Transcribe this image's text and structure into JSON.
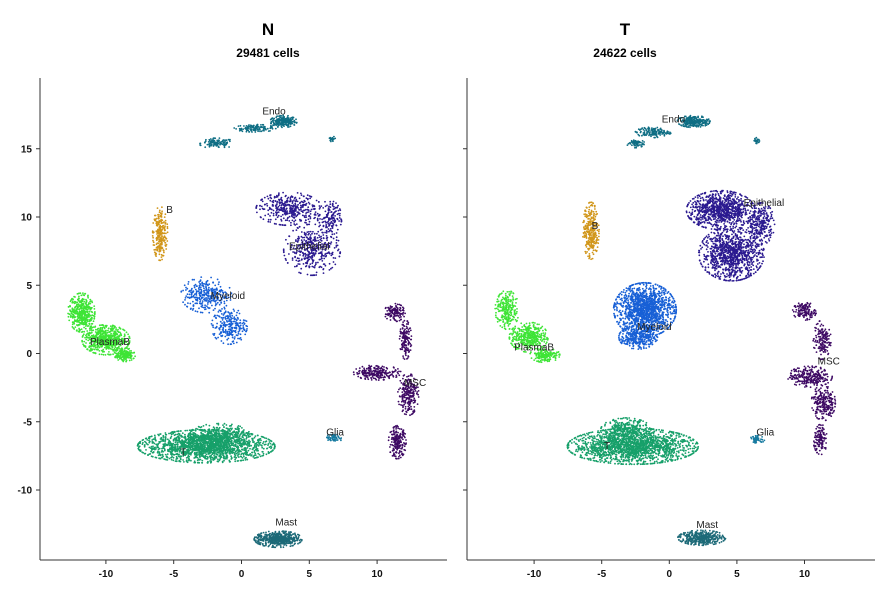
{
  "chart_data": [
    {
      "type": "scatter",
      "title": "N",
      "subtitle": "29481 cells",
      "xlim": [
        -14,
        15
      ],
      "ylim": [
        -15,
        20
      ],
      "xticks": [
        -10,
        -5,
        0,
        5,
        10
      ],
      "yticks": [
        -10,
        -5,
        0,
        5,
        10,
        15
      ],
      "clusters": [
        {
          "name": "Endo",
          "color": "#0f6e84",
          "label_x": 2.4,
          "label_y": 17.7,
          "blobs": [
            {
              "x": 3.1,
              "y": 17.0,
              "rx": 0.9,
              "ry": 0.4,
              "n": 220
            },
            {
              "x": 1.0,
              "y": 16.5,
              "rx": 1.4,
              "ry": 0.25,
              "n": 120
            },
            {
              "x": -1.8,
              "y": 15.4,
              "rx": 1.2,
              "ry": 0.35,
              "n": 110
            },
            {
              "x": 6.7,
              "y": 15.7,
              "rx": 0.2,
              "ry": 0.2,
              "n": 20
            }
          ]
        },
        {
          "name": "B",
          "color": "#d1961a",
          "label_x": -5.3,
          "label_y": 10.5,
          "blobs": [
            {
              "x": -6.0,
              "y": 8.8,
              "rx": 0.5,
              "ry": 1.8,
              "n": 260
            }
          ]
        },
        {
          "name": "Epithelial",
          "color": "#2b1a90",
          "label_x": 5.0,
          "label_y": 7.8,
          "blobs": [
            {
              "x": 3.5,
              "y": 10.6,
              "rx": 2.2,
              "ry": 1.1,
              "n": 380
            },
            {
              "x": 5.2,
              "y": 7.6,
              "rx": 1.9,
              "ry": 1.7,
              "n": 380
            },
            {
              "x": 6.5,
              "y": 9.9,
              "rx": 0.8,
              "ry": 1.2,
              "n": 140
            }
          ]
        },
        {
          "name": "Myeloid",
          "color": "#1860d6",
          "label_x": -1.0,
          "label_y": 4.2,
          "blobs": [
            {
              "x": -2.6,
              "y": 4.3,
              "rx": 1.7,
              "ry": 1.2,
              "n": 320
            },
            {
              "x": -0.9,
              "y": 2.0,
              "rx": 1.2,
              "ry": 1.2,
              "n": 240
            }
          ]
        },
        {
          "name": "PlasmaB",
          "color": "#3ee436",
          "label_x": -9.7,
          "label_y": 0.8,
          "blobs": [
            {
              "x": -11.8,
              "y": 3.0,
              "rx": 0.9,
              "ry": 1.3,
              "n": 420
            },
            {
              "x": -10.0,
              "y": 1.0,
              "rx": 1.6,
              "ry": 1.0,
              "n": 620
            },
            {
              "x": -8.6,
              "y": -0.1,
              "rx": 0.7,
              "ry": 0.45,
              "n": 180
            }
          ]
        },
        {
          "name": "MSC",
          "color": "#3e0a64",
          "label_x": 12.8,
          "label_y": -2.2,
          "blobs": [
            {
              "x": 11.3,
              "y": 3.0,
              "rx": 0.7,
              "ry": 0.6,
              "n": 120
            },
            {
              "x": 12.1,
              "y": 1.0,
              "rx": 0.4,
              "ry": 1.3,
              "n": 140
            },
            {
              "x": 10.0,
              "y": -1.4,
              "rx": 1.6,
              "ry": 0.5,
              "n": 220
            },
            {
              "x": 12.3,
              "y": -3.0,
              "rx": 0.7,
              "ry": 1.4,
              "n": 240
            },
            {
              "x": 11.5,
              "y": -6.5,
              "rx": 0.6,
              "ry": 1.1,
              "n": 200
            }
          ]
        },
        {
          "name": "T",
          "color": "#17a06a",
          "label_x": -4.3,
          "label_y": -7.3,
          "blobs": [
            {
              "x": -2.6,
              "y": -6.8,
              "rx": 4.6,
              "ry": 1.1,
              "n": 1800
            },
            {
              "x": -1.6,
              "y": -5.9,
              "rx": 2.0,
              "ry": 0.7,
              "n": 300
            }
          ]
        },
        {
          "name": "Glia",
          "color": "#167aa0",
          "label_x": 6.9,
          "label_y": -5.8,
          "blobs": [
            {
              "x": 6.8,
              "y": -6.2,
              "rx": 0.6,
              "ry": 0.25,
              "n": 60
            }
          ]
        },
        {
          "name": "Mast",
          "color": "#1d6a78",
          "label_x": 3.3,
          "label_y": -12.4,
          "blobs": [
            {
              "x": 2.7,
              "y": -13.6,
              "rx": 1.6,
              "ry": 0.55,
              "n": 520
            }
          ]
        }
      ]
    },
    {
      "type": "scatter",
      "title": "T",
      "subtitle": "24622 cells",
      "xlim": [
        -14,
        15
      ],
      "ylim": [
        -15,
        20
      ],
      "xticks": [
        -10,
        -5,
        0,
        5,
        10
      ],
      "yticks": [
        -10,
        -5,
        0,
        5,
        10,
        15
      ],
      "clusters": [
        {
          "name": "Endo",
          "color": "#0f6e84",
          "label_x": 0.3,
          "label_y": 17.1,
          "blobs": [
            {
              "x": 1.8,
              "y": 17.0,
              "rx": 1.1,
              "ry": 0.4,
              "n": 260
            },
            {
              "x": -1.2,
              "y": 16.2,
              "rx": 1.2,
              "ry": 0.35,
              "n": 140
            },
            {
              "x": -2.5,
              "y": 15.4,
              "rx": 0.6,
              "ry": 0.3,
              "n": 60
            },
            {
              "x": 6.5,
              "y": 15.6,
              "rx": 0.2,
              "ry": 0.2,
              "n": 20
            }
          ]
        },
        {
          "name": "B",
          "color": "#d1961a",
          "label_x": -5.5,
          "label_y": 9.3,
          "blobs": [
            {
              "x": -5.8,
              "y": 9.0,
              "rx": 0.55,
              "ry": 1.9,
              "n": 300
            }
          ]
        },
        {
          "name": "Epithelial",
          "color": "#2b1a90",
          "label_x": 7.0,
          "label_y": 11.0,
          "blobs": [
            {
              "x": 3.8,
              "y": 10.5,
              "rx": 2.3,
              "ry": 1.3,
              "n": 900
            },
            {
              "x": 4.6,
              "y": 7.3,
              "rx": 2.2,
              "ry": 1.8,
              "n": 1000
            },
            {
              "x": 6.8,
              "y": 9.5,
              "rx": 0.9,
              "ry": 1.4,
              "n": 260
            }
          ]
        },
        {
          "name": "Myeloid",
          "color": "#1860d6",
          "label_x": -1.1,
          "label_y": 1.9,
          "blobs": [
            {
              "x": -1.8,
              "y": 3.2,
              "rx": 2.1,
              "ry": 1.8,
              "n": 1400
            },
            {
              "x": -2.3,
              "y": 1.2,
              "rx": 1.3,
              "ry": 0.8,
              "n": 300
            }
          ]
        },
        {
          "name": "PlasmaB",
          "color": "#3ee436",
          "label_x": -10.0,
          "label_y": 0.4,
          "blobs": [
            {
              "x": -12.0,
              "y": 3.2,
              "rx": 0.8,
              "ry": 1.3,
              "n": 260
            },
            {
              "x": -10.4,
              "y": 1.2,
              "rx": 1.3,
              "ry": 1.0,
              "n": 380
            },
            {
              "x": -9.2,
              "y": -0.1,
              "rx": 1.0,
              "ry": 0.5,
              "n": 160
            }
          ]
        },
        {
          "name": "MSC",
          "color": "#3e0a64",
          "label_x": 11.8,
          "label_y": -0.6,
          "blobs": [
            {
              "x": 10.0,
              "y": 3.1,
              "rx": 0.8,
              "ry": 0.6,
              "n": 130
            },
            {
              "x": 11.3,
              "y": 1.0,
              "rx": 0.6,
              "ry": 1.3,
              "n": 150
            },
            {
              "x": 10.4,
              "y": -1.7,
              "rx": 1.5,
              "ry": 0.7,
              "n": 260
            },
            {
              "x": 11.4,
              "y": -3.6,
              "rx": 0.8,
              "ry": 1.2,
              "n": 220
            },
            {
              "x": 11.2,
              "y": -6.3,
              "rx": 0.5,
              "ry": 1.0,
              "n": 120
            }
          ]
        },
        {
          "name": "T",
          "color": "#17a06a",
          "label_x": -4.6,
          "label_y": -6.8,
          "blobs": [
            {
              "x": -2.7,
              "y": -6.8,
              "rx": 4.4,
              "ry": 1.2,
              "n": 1800
            },
            {
              "x": -3.2,
              "y": -5.6,
              "rx": 1.7,
              "ry": 0.8,
              "n": 300
            }
          ]
        },
        {
          "name": "Glia",
          "color": "#167aa0",
          "label_x": 7.1,
          "label_y": -5.8,
          "blobs": [
            {
              "x": 6.5,
              "y": -6.3,
              "rx": 0.5,
              "ry": 0.25,
              "n": 50
            }
          ]
        },
        {
          "name": "Mast",
          "color": "#1d6a78",
          "label_x": 2.8,
          "label_y": -12.6,
          "blobs": [
            {
              "x": 2.4,
              "y": -13.5,
              "rx": 1.6,
              "ry": 0.5,
              "n": 420
            }
          ]
        }
      ]
    }
  ]
}
